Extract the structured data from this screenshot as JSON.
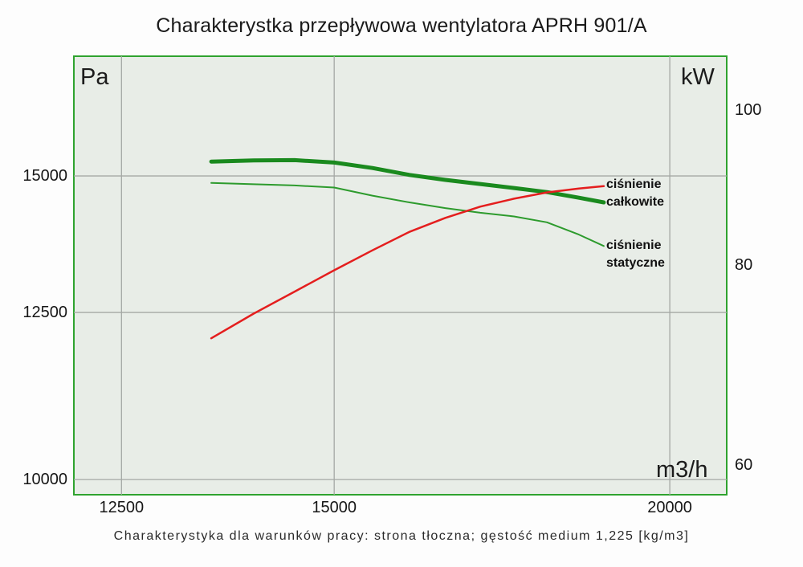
{
  "title": "Charakterystka przepływowa wentylatora APRH 901/A",
  "caption": "Charakterystyka dla warunków pracy: strona tłoczna; gęstość medium 1,225 [kg/m3]",
  "units": {
    "left": "Pa",
    "right": "kW",
    "x": "m3/h"
  },
  "curve_labels": {
    "total": [
      "ciśnienie",
      "całkowite"
    ],
    "static": [
      "ciśnienie",
      "statyczne"
    ]
  },
  "colors": {
    "page_bg": "#fdfdfd",
    "plot_bg": "#e8ede7",
    "plot_border": "#2fa32f",
    "grid": "#a4a8a4",
    "total_curve": "#1a8a1e",
    "static_curve": "#2d9b2d",
    "power_curve": "#e41e1e"
  },
  "chart_data": {
    "type": "line",
    "title": "Charakterystka przepływowa wentylatora APRH 901/A",
    "grid": true,
    "x_axis": {
      "unit": "m3/h",
      "scale": "log",
      "min": 12000,
      "max": 21000,
      "ticks": [
        12500,
        15000,
        20000
      ]
    },
    "y_axis_left": {
      "unit": "Pa",
      "scale": "log",
      "min": 9800,
      "max": 17600,
      "ticks": [
        15000,
        12500,
        10000
      ]
    },
    "y_axis_right": {
      "unit": "kW",
      "scale": "log",
      "min": 57.5,
      "max": 108,
      "ticks": [
        100,
        80,
        60
      ]
    },
    "series": [
      {
        "id": "total-pressure",
        "label": "ciśnienie całkowite",
        "axis": "left",
        "color": "#1a8a1e",
        "stroke_width": 5,
        "x": [
          13500,
          14000,
          14500,
          15000,
          15500,
          16000,
          16500,
          17000,
          17500,
          18000,
          18500,
          18900
        ],
        "y": [
          15290,
          15315,
          15320,
          15270,
          15160,
          15020,
          14920,
          14840,
          14760,
          14680,
          14570,
          14480
        ]
      },
      {
        "id": "static-pressure",
        "label": "ciśnienie statyczne",
        "axis": "left",
        "color": "#2d9b2d",
        "stroke_width": 2,
        "x": [
          13500,
          14000,
          14500,
          15000,
          15500,
          16000,
          16500,
          17000,
          17500,
          18000,
          18500,
          18900
        ],
        "y": [
          14860,
          14835,
          14810,
          14770,
          14610,
          14480,
          14370,
          14280,
          14210,
          14100,
          13870,
          13660
        ]
      },
      {
        "id": "power",
        "label": "",
        "axis": "right",
        "color": "#e41e1e",
        "stroke_width": 2.5,
        "x": [
          13500,
          14000,
          14500,
          15000,
          15500,
          16000,
          16500,
          17000,
          17500,
          18000,
          18500,
          18900
        ],
        "y": [
          72.0,
          74.6,
          77.0,
          79.4,
          81.7,
          83.9,
          85.6,
          87.0,
          88.0,
          88.8,
          89.3,
          89.6
        ]
      }
    ]
  }
}
